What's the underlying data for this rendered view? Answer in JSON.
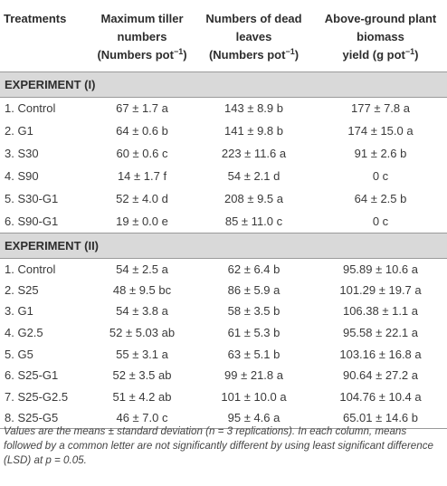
{
  "headers": [
    {
      "lines": [
        "Treatments"
      ]
    },
    {
      "lines": [
        "Maximum tiller",
        "numbers"
      ],
      "unit_prefix": "(Numbers pot",
      "unit_sup": "−1",
      "unit_suffix": ")"
    },
    {
      "lines": [
        "Numbers of dead",
        "leaves"
      ],
      "unit_prefix": "(Numbers pot",
      "unit_sup": "−1",
      "unit_suffix": ")"
    },
    {
      "lines": [
        "Above-ground plant",
        "biomass"
      ],
      "unit_prefix": "yield (g pot",
      "unit_sup": "−1",
      "unit_suffix": ")"
    }
  ],
  "experiment1": {
    "title": "EXPERIMENT (I)",
    "rows": [
      {
        "treatment": "1. Control",
        "tillers": "67 ± 1.7 a",
        "dead_leaves": "143 ± 8.9 b",
        "biomass": "177 ± 7.8 a"
      },
      {
        "treatment": "2. G1",
        "tillers": "64 ± 0.6 b",
        "dead_leaves": "141 ± 9.8 b",
        "biomass": "174 ± 15.0 a"
      },
      {
        "treatment": "3. S30",
        "tillers": "60 ± 0.6 c",
        "dead_leaves": "223 ± 11.6 a",
        "biomass": "91 ± 2.6 b"
      },
      {
        "treatment": "4. S90",
        "tillers": "14 ± 1.7 f",
        "dead_leaves": "54 ± 2.1 d",
        "biomass": "0 c"
      },
      {
        "treatment": "5. S30-G1",
        "tillers": "52 ± 4.0 d",
        "dead_leaves": "208 ± 9.5 a",
        "biomass": "64 ± 2.5 b"
      },
      {
        "treatment": "6. S90-G1",
        "tillers": "19 ± 0.0 e",
        "dead_leaves": "85 ± 11.0 c",
        "biomass": "0 c"
      }
    ]
  },
  "experiment2": {
    "title": "EXPERIMENT (II)",
    "rows": [
      {
        "treatment": "1. Control",
        "tillers": "54 ± 2.5 a",
        "dead_leaves": "62 ± 6.4 b",
        "biomass": "95.89 ± 10.6 a"
      },
      {
        "treatment": "2. S25",
        "tillers": "48 ± 9.5 bc",
        "dead_leaves": "86 ± 5.9 a",
        "biomass": "101.29 ± 19.7 a"
      },
      {
        "treatment": "3. G1",
        "tillers": "54 ± 3.8 a",
        "dead_leaves": "58 ± 3.5 b",
        "biomass": "106.38 ± 1.1 a"
      },
      {
        "treatment": "4. G2.5",
        "tillers": "52 ± 5.03 ab",
        "dead_leaves": "61 ± 5.3 b",
        "biomass": "95.58 ± 22.1 a"
      },
      {
        "treatment": "5. G5",
        "tillers": "55 ± 3.1 a",
        "dead_leaves": "63 ± 5.1 b",
        "biomass": "103.16 ± 16.8 a"
      },
      {
        "treatment": "6. S25-G1",
        "tillers": "52 ± 3.5 ab",
        "dead_leaves": "99 ± 21.8 a",
        "biomass": "90.64 ± 27.2 a"
      },
      {
        "treatment": "7. S25-G2.5",
        "tillers": "51 ± 4.2 ab",
        "dead_leaves": "101 ± 10.0 a",
        "biomass": "104.76 ± 10.4 a"
      },
      {
        "treatment": "8. S25-G5",
        "tillers": "46 ± 7.0 c",
        "dead_leaves": "95 ± 4.6 a",
        "biomass": "65.01 ± 14.6 b"
      }
    ]
  },
  "footnote": "Values are the means ± standard deviation (n = 3 replications). In each column, means followed by a common letter are not significantly different by using least significant difference (LSD) at p = 0.05."
}
